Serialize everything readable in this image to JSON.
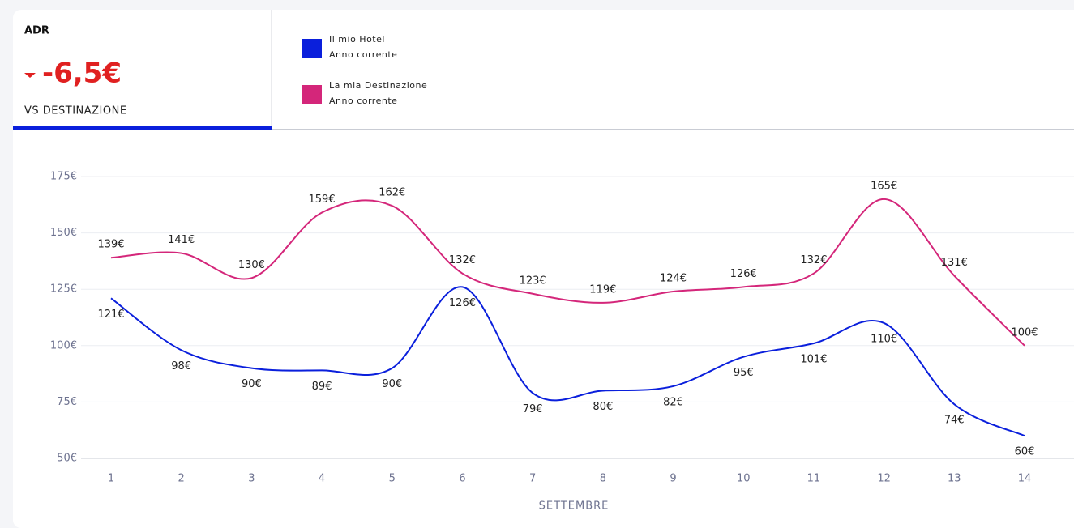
{
  "kpi": {
    "label": "ADR",
    "value_label": "-6,5€",
    "comparison": "VS DESTINAZIONE"
  },
  "chart_data": {
    "type": "line",
    "x_label": "SETTEMBRE",
    "categories": [
      "1",
      "2",
      "3",
      "4",
      "5",
      "6",
      "7",
      "8",
      "9",
      "10",
      "11",
      "12",
      "13",
      "14"
    ],
    "series": [
      {
        "name": "Il mio Hotel",
        "period": "Anno corrente",
        "color": "#0a1fdc",
        "values": [
          121,
          98,
          90,
          89,
          90,
          126,
          79,
          80,
          82,
          95,
          101,
          110,
          74,
          60
        ],
        "value_labels": [
          "121€",
          "98€",
          "90€",
          "89€",
          "90€",
          "126€",
          "79€",
          "80€",
          "82€",
          "95€",
          "101€",
          "110€",
          "74€",
          "60€"
        ]
      },
      {
        "name": "La mia Destinazione",
        "period": "Anno corrente",
        "color": "#d4267a",
        "values": [
          139,
          141,
          130,
          159,
          162,
          132,
          123,
          119,
          124,
          126,
          132,
          165,
          131,
          100
        ],
        "value_labels": [
          "139€",
          "141€",
          "130€",
          "159€",
          "162€",
          "132€",
          "123€",
          "119€",
          "124€",
          "126€",
          "132€",
          "165€",
          "131€",
          "100€"
        ]
      }
    ],
    "ylim": [
      50,
      175
    ],
    "yticks": [
      {
        "value": 50,
        "label": "50€"
      },
      {
        "value": 75,
        "label": "75€"
      },
      {
        "value": 100,
        "label": "100€"
      },
      {
        "value": 125,
        "label": "125€"
      },
      {
        "value": 150,
        "label": "150€"
      },
      {
        "value": 175,
        "label": "175€"
      }
    ],
    "grid": true
  }
}
